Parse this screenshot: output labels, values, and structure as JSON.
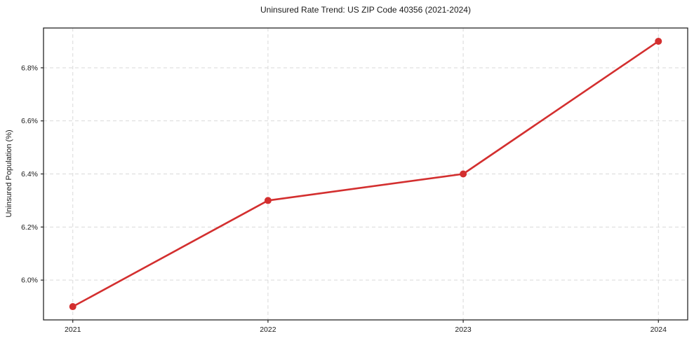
{
  "chart_data": {
    "type": "line",
    "title": "Uninsured Rate Trend: US ZIP Code 40356 (2021-2024)",
    "xlabel": "",
    "ylabel": "Uninsured Population (%)",
    "x": [
      2021,
      2022,
      2023,
      2024
    ],
    "values": [
      5.9,
      6.3,
      6.4,
      6.9
    ],
    "xticks": [
      2021,
      2022,
      2023,
      2024
    ],
    "xtick_labels": [
      "2021",
      "2022",
      "2023",
      "2024"
    ],
    "yticks": [
      6.0,
      6.2,
      6.4,
      6.6,
      6.8
    ],
    "ytick_labels": [
      "6.0%",
      "6.2%",
      "6.4%",
      "6.6%",
      "6.8%"
    ],
    "xlim": [
      2020.85,
      2024.15
    ],
    "ylim": [
      5.85,
      6.95
    ],
    "grid": true,
    "grid_style": "dashed",
    "legend": "none",
    "colors": {
      "line": "#d32f2f",
      "marker": "#d32f2f",
      "grid": "#d9d9d9",
      "spine": "#262626",
      "tick_text": "#1a1a1a",
      "background": "#ffffff"
    }
  }
}
